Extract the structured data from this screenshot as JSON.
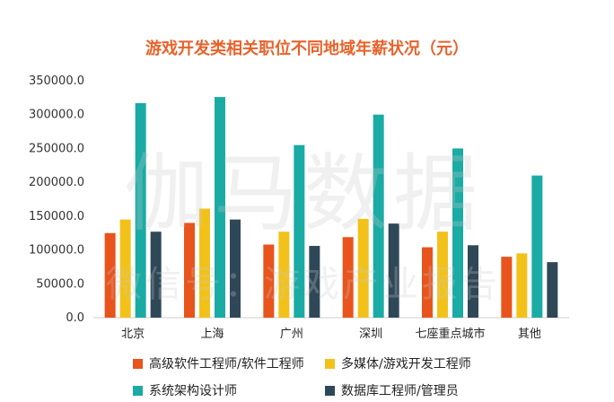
{
  "chart_data": {
    "type": "bar",
    "title": "游戏开发类相关职位不同地域年薪状况（元）",
    "xlabel": "",
    "ylabel": "",
    "categories": [
      "北京",
      "上海",
      "广州",
      "深圳",
      "七座重点城市",
      "其他"
    ],
    "ylim": [
      0,
      350000
    ],
    "yticks": [
      "0.0",
      "50000.0",
      "100000.0",
      "150000.0",
      "200000.0",
      "250000.0",
      "300000.0",
      "350000.0"
    ],
    "grid": false,
    "legend_position": "bottom",
    "series": [
      {
        "name": "高级软件工程师/软件工程师",
        "color": "#e8541c",
        "values": [
          125000,
          140000,
          108000,
          119000,
          104000,
          90000
        ]
      },
      {
        "name": "多媒体/游戏开发工程师",
        "color": "#f2c21b",
        "values": [
          145000,
          161000,
          127000,
          146000,
          127000,
          95000
        ]
      },
      {
        "name": "系统架构设计师",
        "color": "#1aaba5",
        "values": [
          317000,
          326000,
          255000,
          300000,
          250000,
          210000
        ]
      },
      {
        "name": "数据库工程师/管理员",
        "color": "#2f4858",
        "values": [
          127000,
          145000,
          106000,
          139000,
          107000,
          82000
        ]
      }
    ]
  },
  "watermark": {
    "main": "伽马数据",
    "sub": "微信号：游戏产业报告"
  }
}
